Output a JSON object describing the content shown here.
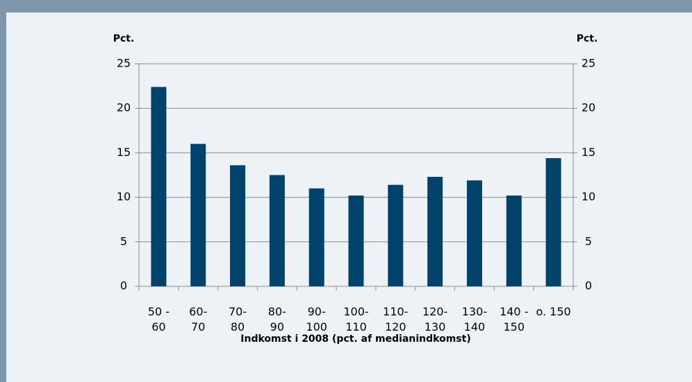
{
  "chart_data": {
    "type": "bar",
    "y_label": "Pct.",
    "y2_label": "Pct.",
    "x_label": "Indkomst i 2008 (pct. af medianindkomst)",
    "categories": [
      "50 -\n60",
      "60-\n70",
      "70-\n80",
      "80-\n90",
      "90-\n100",
      "100-\n110",
      "110-\n120",
      "120-\n130",
      "130-\n140",
      "140 -\n150",
      "o. 150"
    ],
    "values": [
      22.4,
      16.0,
      13.6,
      12.5,
      11.0,
      10.2,
      11.4,
      12.3,
      11.9,
      10.2,
      14.4
    ],
    "color": "#004269",
    "ylim": [
      0,
      25
    ],
    "yticks": [
      0,
      5,
      10,
      15,
      20,
      25
    ],
    "y2lim": [
      0,
      25
    ],
    "y2ticks": [
      0,
      5,
      10,
      15,
      20,
      25
    ],
    "grid": true
  }
}
